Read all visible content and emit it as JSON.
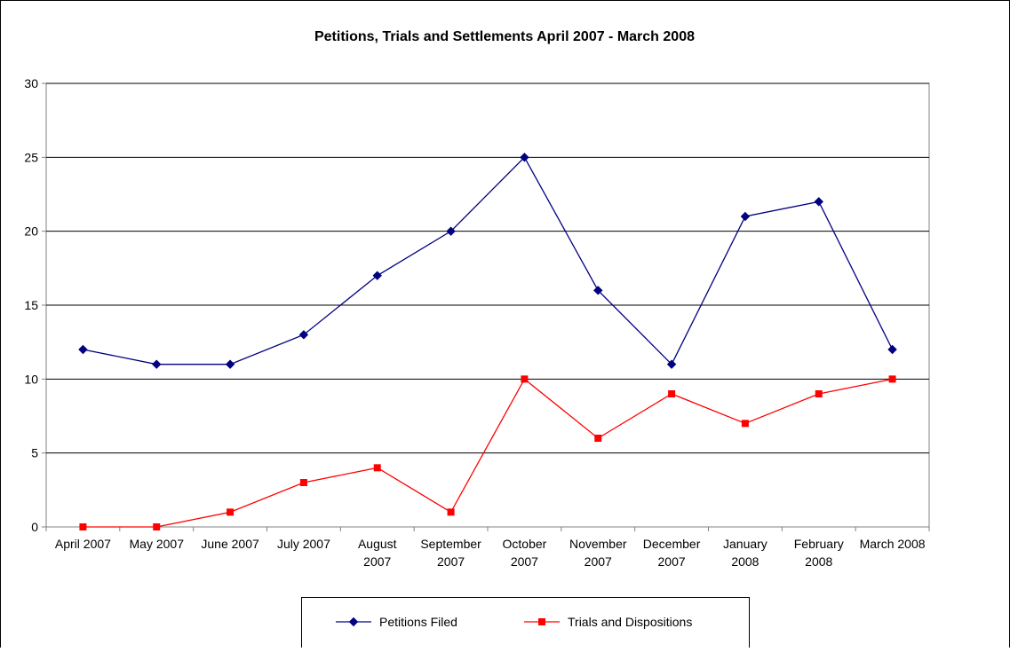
{
  "chart_data": {
    "type": "line",
    "title": "Petitions, Trials and Settlements April 2007 - March 2008",
    "categories": [
      [
        "April 2007"
      ],
      [
        "May 2007"
      ],
      [
        "June 2007"
      ],
      [
        "July 2007"
      ],
      [
        "August",
        "2007"
      ],
      [
        "September",
        "2007"
      ],
      [
        "October",
        "2007"
      ],
      [
        "November",
        "2007"
      ],
      [
        "December",
        "2007"
      ],
      [
        "January",
        "2008"
      ],
      [
        "February",
        "2008"
      ],
      [
        "March 2008"
      ]
    ],
    "series": [
      {
        "name": "Petitions Filed",
        "color": "#000080",
        "marker": "diamond",
        "values": [
          12,
          11,
          11,
          13,
          17,
          20,
          25,
          16,
          11,
          21,
          22,
          12
        ]
      },
      {
        "name": "Trials and Dispositions",
        "color": "#ff0000",
        "marker": "square",
        "values": [
          0,
          0,
          1,
          3,
          4,
          1,
          10,
          6,
          9,
          7,
          9,
          10
        ]
      }
    ],
    "ylim": [
      0,
      30
    ],
    "yticks": [
      0,
      5,
      10,
      15,
      20,
      25,
      30
    ],
    "grid": true,
    "legend": "bottom"
  }
}
